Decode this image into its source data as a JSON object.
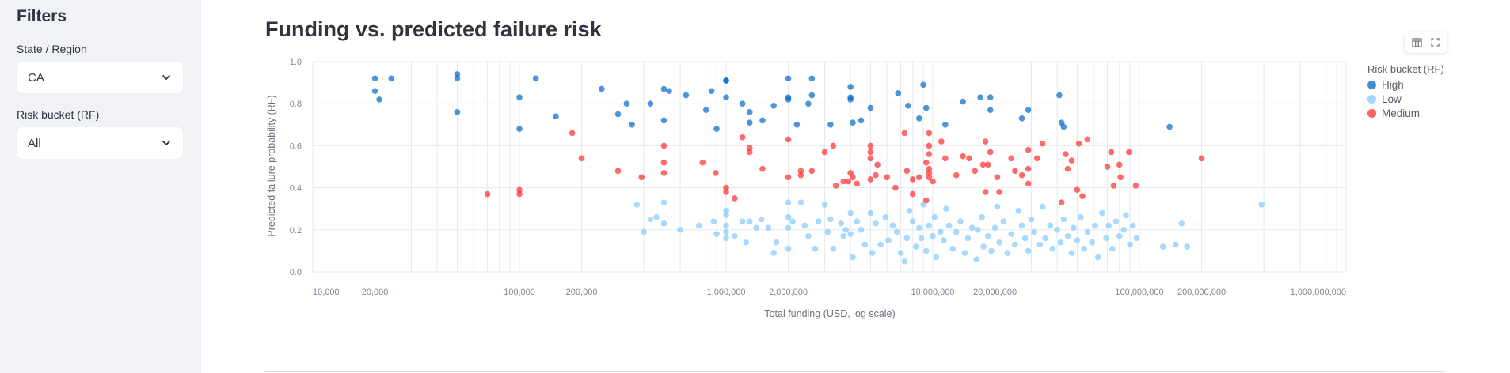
{
  "sidebar": {
    "title": "Filters",
    "state_label": "State / Region",
    "state_value": "CA",
    "risk_label": "Risk bucket (RF)",
    "risk_value": "All"
  },
  "main": {
    "title": "Funding vs. predicted failure risk",
    "toolbar": {
      "table_icon": "table-icon",
      "fullscreen_icon": "fullscreen-icon"
    }
  },
  "chart_data": {
    "type": "scatter",
    "xlabel": "Total funding (USD, log scale)",
    "ylabel": "Predicted failure probability (RF)",
    "x_scale": "log",
    "xlim": [
      10000,
      1000000000
    ],
    "ylim": [
      0,
      1
    ],
    "grid": true,
    "x_ticks": [
      "10,000",
      "20,000",
      "100,000",
      "200,000",
      "1,000,000",
      "2,000,000",
      "10,000,000",
      "20,000,000",
      "100,000,000",
      "200,000,000",
      "1,000,000,000"
    ],
    "x_tick_values": [
      10000,
      20000,
      100000,
      200000,
      1000000,
      2000000,
      10000000,
      20000000,
      100000000,
      200000000,
      1000000000
    ],
    "y_ticks": [
      "0.0",
      "0.2",
      "0.4",
      "0.6",
      "0.8",
      "1.0"
    ],
    "y_tick_values": [
      0,
      0.2,
      0.4,
      0.6,
      0.8,
      1.0
    ],
    "legend": {
      "title": "Risk bucket (RF)",
      "placement": "right"
    },
    "series": [
      {
        "name": "High",
        "color": "#0068c9",
        "points": [
          [
            20000,
            0.92
          ],
          [
            20000,
            0.86
          ],
          [
            21000,
            0.82
          ],
          [
            24000,
            0.92
          ],
          [
            50000,
            0.94
          ],
          [
            50000,
            0.92
          ],
          [
            50000,
            0.76
          ],
          [
            100000,
            0.83
          ],
          [
            100000,
            0.68
          ],
          [
            120000,
            0.92
          ],
          [
            150000,
            0.74
          ],
          [
            250000,
            0.87
          ],
          [
            300000,
            0.75
          ],
          [
            330000,
            0.8
          ],
          [
            350000,
            0.7
          ],
          [
            430000,
            0.8
          ],
          [
            500000,
            0.87
          ],
          [
            500000,
            0.72
          ],
          [
            530000,
            0.86
          ],
          [
            640000,
            0.84
          ],
          [
            800000,
            0.77
          ],
          [
            850000,
            0.86
          ],
          [
            900000,
            0.68
          ],
          [
            1000000,
            0.91
          ],
          [
            1000000,
            0.91
          ],
          [
            1000000,
            0.83
          ],
          [
            1200000,
            0.8
          ],
          [
            1300000,
            0.76
          ],
          [
            1300000,
            0.71
          ],
          [
            1500000,
            0.72
          ],
          [
            1700000,
            0.79
          ],
          [
            2000000,
            0.92
          ],
          [
            2000000,
            0.83
          ],
          [
            2000000,
            0.82
          ],
          [
            2200000,
            0.7
          ],
          [
            2500000,
            0.8
          ],
          [
            2600000,
            0.84
          ],
          [
            2600000,
            0.92
          ],
          [
            3200000,
            0.7
          ],
          [
            4000000,
            0.88
          ],
          [
            4000000,
            0.83
          ],
          [
            4000000,
            0.82
          ],
          [
            4100000,
            0.71
          ],
          [
            4500000,
            0.72
          ],
          [
            5000000,
            0.78
          ],
          [
            6800000,
            0.85
          ],
          [
            7600000,
            0.79
          ],
          [
            9000000,
            0.89
          ],
          [
            9300000,
            0.78
          ],
          [
            8600000,
            0.73
          ],
          [
            11500000,
            0.7
          ],
          [
            14000000,
            0.81
          ],
          [
            17000000,
            0.83
          ],
          [
            19000000,
            0.83
          ],
          [
            19000000,
            0.77
          ],
          [
            27000000,
            0.73
          ],
          [
            29000000,
            0.77
          ],
          [
            41000000,
            0.84
          ],
          [
            42000000,
            0.71
          ],
          [
            43000000,
            0.69
          ],
          [
            140000000,
            0.69
          ]
        ]
      },
      {
        "name": "Low",
        "color": "#83c9ff",
        "points": [
          [
            370000,
            0.32
          ],
          [
            400000,
            0.19
          ],
          [
            430000,
            0.25
          ],
          [
            460000,
            0.26
          ],
          [
            500000,
            0.33
          ],
          [
            500000,
            0.23
          ],
          [
            600000,
            0.2
          ],
          [
            740000,
            0.22
          ],
          [
            870000,
            0.24
          ],
          [
            900000,
            0.18
          ],
          [
            1000000,
            0.29
          ],
          [
            1000000,
            0.27
          ],
          [
            1000000,
            0.22
          ],
          [
            1000000,
            0.19
          ],
          [
            1000000,
            0.16
          ],
          [
            1100000,
            0.17
          ],
          [
            1200000,
            0.24
          ],
          [
            1250000,
            0.14
          ],
          [
            1300000,
            0.24
          ],
          [
            1400000,
            0.21
          ],
          [
            1480000,
            0.25
          ],
          [
            1600000,
            0.21
          ],
          [
            1700000,
            0.09
          ],
          [
            1750000,
            0.14
          ],
          [
            2000000,
            0.26
          ],
          [
            2000000,
            0.21
          ],
          [
            2000000,
            0.11
          ],
          [
            2000000,
            0.33
          ],
          [
            2100000,
            0.24
          ],
          [
            2300000,
            0.33
          ],
          [
            2400000,
            0.22
          ],
          [
            2500000,
            0.17
          ],
          [
            2700000,
            0.11
          ],
          [
            2800000,
            0.24
          ],
          [
            3000000,
            0.32
          ],
          [
            3100000,
            0.19
          ],
          [
            3200000,
            0.25
          ],
          [
            3300000,
            0.11
          ],
          [
            3600000,
            0.23
          ],
          [
            3700000,
            0.17
          ],
          [
            3800000,
            0.2
          ],
          [
            4000000,
            0.28
          ],
          [
            4000000,
            0.18
          ],
          [
            4100000,
            0.07
          ],
          [
            4300000,
            0.24
          ],
          [
            4500000,
            0.2
          ],
          [
            4700000,
            0.13
          ],
          [
            5000000,
            0.28
          ],
          [
            5100000,
            0.09
          ],
          [
            5300000,
            0.23
          ],
          [
            5600000,
            0.13
          ],
          [
            5900000,
            0.26
          ],
          [
            6100000,
            0.15
          ],
          [
            6400000,
            0.22
          ],
          [
            6700000,
            0.19
          ],
          [
            7000000,
            0.09
          ],
          [
            7300000,
            0.05
          ],
          [
            7500000,
            0.16
          ],
          [
            7700000,
            0.29
          ],
          [
            8000000,
            0.24
          ],
          [
            8300000,
            0.12
          ],
          [
            8600000,
            0.21
          ],
          [
            8800000,
            0.16
          ],
          [
            9000000,
            0.32
          ],
          [
            9300000,
            0.1
          ],
          [
            9600000,
            0.22
          ],
          [
            10000000,
            0.17
          ],
          [
            10200000,
            0.26
          ],
          [
            10400000,
            0.07
          ],
          [
            10900000,
            0.19
          ],
          [
            11300000,
            0.15
          ],
          [
            11600000,
            0.3
          ],
          [
            12000000,
            0.22
          ],
          [
            12500000,
            0.11
          ],
          [
            13000000,
            0.19
          ],
          [
            13600000,
            0.24
          ],
          [
            14300000,
            0.09
          ],
          [
            14800000,
            0.16
          ],
          [
            15500000,
            0.21
          ],
          [
            16300000,
            0.06
          ],
          [
            16500000,
            0.2
          ],
          [
            17300000,
            0.26
          ],
          [
            17600000,
            0.12
          ],
          [
            18500000,
            0.17
          ],
          [
            19200000,
            0.1
          ],
          [
            20000000,
            0.21
          ],
          [
            20500000,
            0.31
          ],
          [
            21000000,
            0.14
          ],
          [
            22000000,
            0.24
          ],
          [
            23000000,
            0.09
          ],
          [
            24000000,
            0.18
          ],
          [
            25000000,
            0.13
          ],
          [
            26000000,
            0.29
          ],
          [
            27000000,
            0.22
          ],
          [
            28000000,
            0.16
          ],
          [
            29000000,
            0.1
          ],
          [
            30000000,
            0.25
          ],
          [
            31000000,
            0.19
          ],
          [
            33000000,
            0.13
          ],
          [
            34000000,
            0.31
          ],
          [
            35000000,
            0.16
          ],
          [
            37000000,
            0.22
          ],
          [
            38000000,
            0.11
          ],
          [
            40000000,
            0.2
          ],
          [
            41500000,
            0.14
          ],
          [
            43000000,
            0.25
          ],
          [
            45000000,
            0.17
          ],
          [
            47000000,
            0.09
          ],
          [
            48000000,
            0.21
          ],
          [
            50000000,
            0.15
          ],
          [
            52000000,
            0.26
          ],
          [
            54000000,
            0.11
          ],
          [
            56000000,
            0.19
          ],
          [
            59000000,
            0.14
          ],
          [
            61000000,
            0.22
          ],
          [
            63000000,
            0.07
          ],
          [
            66000000,
            0.28
          ],
          [
            69000000,
            0.16
          ],
          [
            71000000,
            0.22
          ],
          [
            74000000,
            0.11
          ],
          [
            77000000,
            0.24
          ],
          [
            80000000,
            0.17
          ],
          [
            84000000,
            0.2
          ],
          [
            86000000,
            0.27
          ],
          [
            90000000,
            0.13
          ],
          [
            93000000,
            0.22
          ],
          [
            97000000,
            0.16
          ],
          [
            130000000,
            0.12
          ],
          [
            150000000,
            0.13
          ],
          [
            160000000,
            0.23
          ],
          [
            170000000,
            0.12
          ],
          [
            390000000,
            0.32
          ]
        ]
      },
      {
        "name": "Medium",
        "color": "#ff2b2b",
        "points": [
          [
            70000,
            0.37
          ],
          [
            100000,
            0.39
          ],
          [
            100000,
            0.37
          ],
          [
            180000,
            0.66
          ],
          [
            200000,
            0.54
          ],
          [
            300000,
            0.48
          ],
          [
            390000,
            0.45
          ],
          [
            500000,
            0.6
          ],
          [
            500000,
            0.52
          ],
          [
            500000,
            0.47
          ],
          [
            770000,
            0.52
          ],
          [
            890000,
            0.47
          ],
          [
            1000000,
            0.4
          ],
          [
            1000000,
            0.38
          ],
          [
            1100000,
            0.35
          ],
          [
            1200000,
            0.64
          ],
          [
            1300000,
            0.59
          ],
          [
            1300000,
            0.57
          ],
          [
            1500000,
            0.49
          ],
          [
            2000000,
            0.63
          ],
          [
            2000000,
            0.45
          ],
          [
            2300000,
            0.48
          ],
          [
            2300000,
            0.46
          ],
          [
            2600000,
            0.48
          ],
          [
            3000000,
            0.57
          ],
          [
            3300000,
            0.6
          ],
          [
            3400000,
            0.41
          ],
          [
            3700000,
            0.43
          ],
          [
            3900000,
            0.43
          ],
          [
            4000000,
            0.47
          ],
          [
            4100000,
            0.45
          ],
          [
            4300000,
            0.42
          ],
          [
            5000000,
            0.57
          ],
          [
            5000000,
            0.6
          ],
          [
            5000000,
            0.54
          ],
          [
            5000000,
            0.44
          ],
          [
            5300000,
            0.46
          ],
          [
            5400000,
            0.51
          ],
          [
            6000000,
            0.45
          ],
          [
            6600000,
            0.4
          ],
          [
            7500000,
            0.48
          ],
          [
            8000000,
            0.44
          ],
          [
            8000000,
            0.37
          ],
          [
            8600000,
            0.45
          ],
          [
            7300000,
            0.66
          ],
          [
            9300000,
            0.52
          ],
          [
            9300000,
            0.34
          ],
          [
            9600000,
            0.66
          ],
          [
            9600000,
            0.6
          ],
          [
            9600000,
            0.56
          ],
          [
            9600000,
            0.49
          ],
          [
            9600000,
            0.47
          ],
          [
            9600000,
            0.45
          ],
          [
            10000000,
            0.43
          ],
          [
            11000000,
            0.62
          ],
          [
            11500000,
            0.54
          ],
          [
            13000000,
            0.46
          ],
          [
            14000000,
            0.55
          ],
          [
            15000000,
            0.54
          ],
          [
            16000000,
            0.48
          ],
          [
            17500000,
            0.51
          ],
          [
            18000000,
            0.62
          ],
          [
            18000000,
            0.38
          ],
          [
            18500000,
            0.51
          ],
          [
            19000000,
            0.57
          ],
          [
            20500000,
            0.45
          ],
          [
            21000000,
            0.38
          ],
          [
            24000000,
            0.54
          ],
          [
            25000000,
            0.48
          ],
          [
            27000000,
            0.46
          ],
          [
            29000000,
            0.58
          ],
          [
            29000000,
            0.49
          ],
          [
            29000000,
            0.42
          ],
          [
            32000000,
            0.54
          ],
          [
            34000000,
            0.61
          ],
          [
            42000000,
            0.33
          ],
          [
            44000000,
            0.56
          ],
          [
            45000000,
            0.49
          ],
          [
            47000000,
            0.53
          ],
          [
            50000000,
            0.39
          ],
          [
            51000000,
            0.61
          ],
          [
            53000000,
            0.36
          ],
          [
            56000000,
            0.63
          ],
          [
            70000000,
            0.5
          ],
          [
            73000000,
            0.57
          ],
          [
            75000000,
            0.41
          ],
          [
            80000000,
            0.51
          ],
          [
            81000000,
            0.45
          ],
          [
            89000000,
            0.57
          ],
          [
            96000000,
            0.41
          ],
          [
            200000000,
            0.54
          ]
        ]
      }
    ]
  }
}
